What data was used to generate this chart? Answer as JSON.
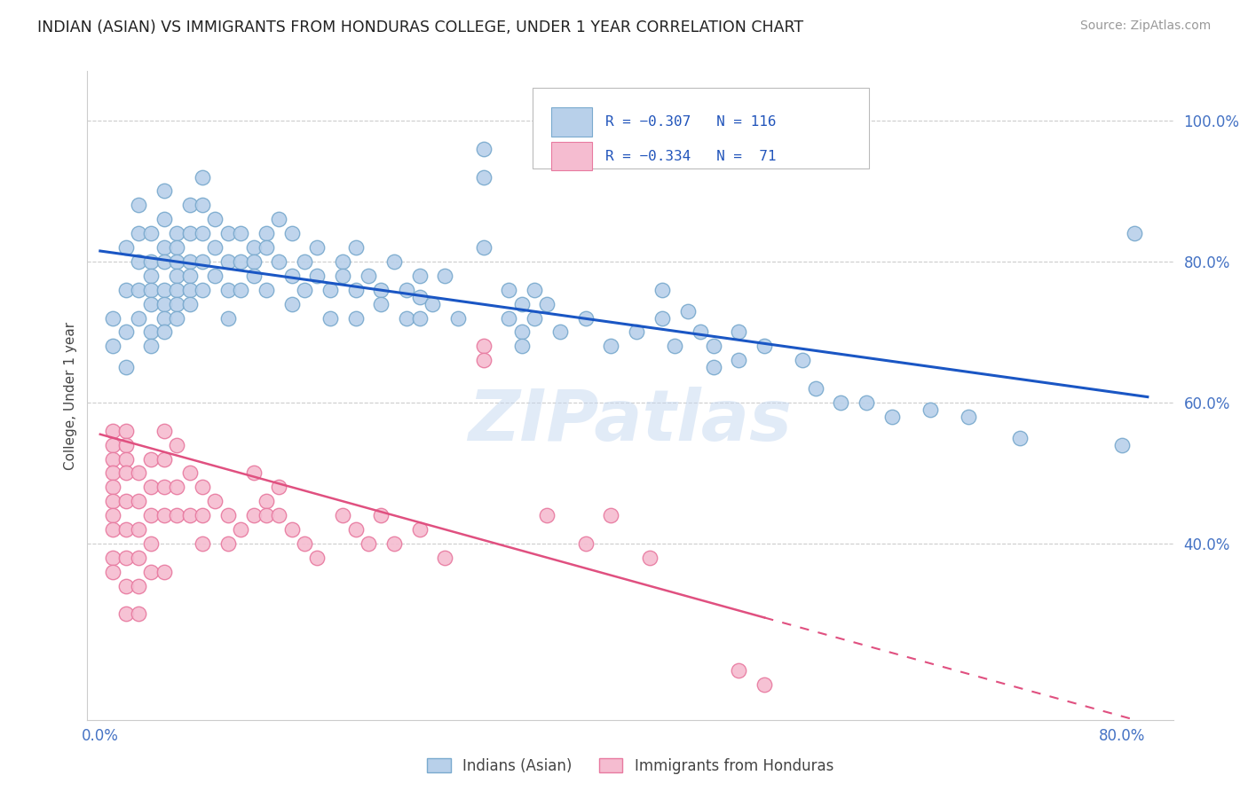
{
  "title": "INDIAN (ASIAN) VS IMMIGRANTS FROM HONDURAS COLLEGE, UNDER 1 YEAR CORRELATION CHART",
  "source": "Source: ZipAtlas.com",
  "ylabel": "College, Under 1 year",
  "legend_series": [
    {
      "label": "Indians (Asian)",
      "color": "#b8d0ea",
      "border": "#7aaace"
    },
    {
      "label": "Immigrants from Honduras",
      "color": "#f5bcd0",
      "border": "#e87aa0"
    }
  ],
  "watermark": "ZIPatlas",
  "background_color": "#ffffff",
  "grid_color": "#cccccc",
  "xlim": [
    -0.01,
    0.84
  ],
  "ylim": [
    0.15,
    1.07
  ],
  "ytick_positions": [
    0.4,
    0.6,
    0.8,
    1.0
  ],
  "ytick_labels": [
    "40.0%",
    "60.0%",
    "80.0%",
    "100.0%"
  ],
  "xtick_positions": [
    0.0,
    0.8
  ],
  "xtick_labels": [
    "0.0%",
    "80.0%"
  ],
  "blue_line": {
    "x0": 0.0,
    "x1": 0.82,
    "y0": 0.815,
    "y1": 0.608
  },
  "pink_line_solid": {
    "x0": 0.0,
    "x1": 0.52,
    "y0": 0.555,
    "y1": 0.295
  },
  "pink_line_dashed": {
    "x0": 0.52,
    "x1": 0.82,
    "y0": 0.295,
    "y1": 0.145
  },
  "blue_scatter": [
    [
      0.01,
      0.72
    ],
    [
      0.01,
      0.68
    ],
    [
      0.02,
      0.82
    ],
    [
      0.02,
      0.76
    ],
    [
      0.02,
      0.7
    ],
    [
      0.02,
      0.65
    ],
    [
      0.03,
      0.88
    ],
    [
      0.03,
      0.84
    ],
    [
      0.03,
      0.8
    ],
    [
      0.03,
      0.76
    ],
    [
      0.03,
      0.72
    ],
    [
      0.04,
      0.84
    ],
    [
      0.04,
      0.8
    ],
    [
      0.04,
      0.78
    ],
    [
      0.04,
      0.76
    ],
    [
      0.04,
      0.74
    ],
    [
      0.04,
      0.7
    ],
    [
      0.04,
      0.68
    ],
    [
      0.05,
      0.9
    ],
    [
      0.05,
      0.86
    ],
    [
      0.05,
      0.82
    ],
    [
      0.05,
      0.8
    ],
    [
      0.05,
      0.76
    ],
    [
      0.05,
      0.74
    ],
    [
      0.05,
      0.72
    ],
    [
      0.05,
      0.7
    ],
    [
      0.06,
      0.84
    ],
    [
      0.06,
      0.82
    ],
    [
      0.06,
      0.8
    ],
    [
      0.06,
      0.78
    ],
    [
      0.06,
      0.76
    ],
    [
      0.06,
      0.74
    ],
    [
      0.06,
      0.72
    ],
    [
      0.07,
      0.88
    ],
    [
      0.07,
      0.84
    ],
    [
      0.07,
      0.8
    ],
    [
      0.07,
      0.78
    ],
    [
      0.07,
      0.76
    ],
    [
      0.07,
      0.74
    ],
    [
      0.08,
      0.92
    ],
    [
      0.08,
      0.88
    ],
    [
      0.08,
      0.84
    ],
    [
      0.08,
      0.8
    ],
    [
      0.08,
      0.76
    ],
    [
      0.09,
      0.86
    ],
    [
      0.09,
      0.82
    ],
    [
      0.09,
      0.78
    ],
    [
      0.1,
      0.84
    ],
    [
      0.1,
      0.8
    ],
    [
      0.1,
      0.76
    ],
    [
      0.1,
      0.72
    ],
    [
      0.11,
      0.84
    ],
    [
      0.11,
      0.8
    ],
    [
      0.11,
      0.76
    ],
    [
      0.12,
      0.82
    ],
    [
      0.12,
      0.8
    ],
    [
      0.12,
      0.78
    ],
    [
      0.13,
      0.84
    ],
    [
      0.13,
      0.82
    ],
    [
      0.13,
      0.76
    ],
    [
      0.14,
      0.86
    ],
    [
      0.14,
      0.8
    ],
    [
      0.15,
      0.84
    ],
    [
      0.15,
      0.78
    ],
    [
      0.15,
      0.74
    ],
    [
      0.16,
      0.8
    ],
    [
      0.16,
      0.76
    ],
    [
      0.17,
      0.82
    ],
    [
      0.17,
      0.78
    ],
    [
      0.18,
      0.76
    ],
    [
      0.18,
      0.72
    ],
    [
      0.19,
      0.8
    ],
    [
      0.19,
      0.78
    ],
    [
      0.2,
      0.82
    ],
    [
      0.2,
      0.76
    ],
    [
      0.2,
      0.72
    ],
    [
      0.21,
      0.78
    ],
    [
      0.22,
      0.76
    ],
    [
      0.22,
      0.74
    ],
    [
      0.23,
      0.8
    ],
    [
      0.24,
      0.76
    ],
    [
      0.24,
      0.72
    ],
    [
      0.25,
      0.78
    ],
    [
      0.25,
      0.75
    ],
    [
      0.25,
      0.72
    ],
    [
      0.26,
      0.74
    ],
    [
      0.27,
      0.78
    ],
    [
      0.28,
      0.72
    ],
    [
      0.3,
      0.96
    ],
    [
      0.3,
      0.92
    ],
    [
      0.3,
      0.82
    ],
    [
      0.32,
      0.76
    ],
    [
      0.32,
      0.72
    ],
    [
      0.33,
      0.74
    ],
    [
      0.33,
      0.7
    ],
    [
      0.33,
      0.68
    ],
    [
      0.34,
      0.76
    ],
    [
      0.34,
      0.72
    ],
    [
      0.35,
      0.74
    ],
    [
      0.36,
      0.7
    ],
    [
      0.38,
      0.72
    ],
    [
      0.4,
      0.68
    ],
    [
      0.42,
      0.7
    ],
    [
      0.44,
      0.76
    ],
    [
      0.44,
      0.72
    ],
    [
      0.45,
      0.68
    ],
    [
      0.46,
      0.73
    ],
    [
      0.47,
      0.7
    ],
    [
      0.48,
      0.68
    ],
    [
      0.48,
      0.65
    ],
    [
      0.5,
      0.7
    ],
    [
      0.5,
      0.66
    ],
    [
      0.52,
      0.68
    ],
    [
      0.55,
      0.66
    ],
    [
      0.56,
      0.62
    ],
    [
      0.58,
      0.6
    ],
    [
      0.6,
      0.6
    ],
    [
      0.62,
      0.58
    ],
    [
      0.65,
      0.59
    ],
    [
      0.68,
      0.58
    ],
    [
      0.72,
      0.55
    ],
    [
      0.8,
      0.54
    ],
    [
      0.81,
      0.84
    ]
  ],
  "pink_scatter": [
    [
      0.01,
      0.56
    ],
    [
      0.01,
      0.54
    ],
    [
      0.01,
      0.52
    ],
    [
      0.01,
      0.5
    ],
    [
      0.01,
      0.48
    ],
    [
      0.01,
      0.46
    ],
    [
      0.01,
      0.44
    ],
    [
      0.01,
      0.42
    ],
    [
      0.01,
      0.38
    ],
    [
      0.01,
      0.36
    ],
    [
      0.02,
      0.56
    ],
    [
      0.02,
      0.54
    ],
    [
      0.02,
      0.52
    ],
    [
      0.02,
      0.5
    ],
    [
      0.02,
      0.46
    ],
    [
      0.02,
      0.42
    ],
    [
      0.02,
      0.38
    ],
    [
      0.02,
      0.34
    ],
    [
      0.02,
      0.3
    ],
    [
      0.03,
      0.5
    ],
    [
      0.03,
      0.46
    ],
    [
      0.03,
      0.42
    ],
    [
      0.03,
      0.38
    ],
    [
      0.03,
      0.34
    ],
    [
      0.03,
      0.3
    ],
    [
      0.04,
      0.52
    ],
    [
      0.04,
      0.48
    ],
    [
      0.04,
      0.44
    ],
    [
      0.04,
      0.4
    ],
    [
      0.04,
      0.36
    ],
    [
      0.05,
      0.56
    ],
    [
      0.05,
      0.52
    ],
    [
      0.05,
      0.48
    ],
    [
      0.05,
      0.44
    ],
    [
      0.05,
      0.36
    ],
    [
      0.06,
      0.54
    ],
    [
      0.06,
      0.48
    ],
    [
      0.06,
      0.44
    ],
    [
      0.07,
      0.5
    ],
    [
      0.07,
      0.44
    ],
    [
      0.08,
      0.48
    ],
    [
      0.08,
      0.44
    ],
    [
      0.08,
      0.4
    ],
    [
      0.09,
      0.46
    ],
    [
      0.1,
      0.44
    ],
    [
      0.1,
      0.4
    ],
    [
      0.11,
      0.42
    ],
    [
      0.12,
      0.5
    ],
    [
      0.12,
      0.44
    ],
    [
      0.13,
      0.46
    ],
    [
      0.13,
      0.44
    ],
    [
      0.14,
      0.48
    ],
    [
      0.14,
      0.44
    ],
    [
      0.15,
      0.42
    ],
    [
      0.16,
      0.4
    ],
    [
      0.17,
      0.38
    ],
    [
      0.19,
      0.44
    ],
    [
      0.2,
      0.42
    ],
    [
      0.21,
      0.4
    ],
    [
      0.22,
      0.44
    ],
    [
      0.23,
      0.4
    ],
    [
      0.25,
      0.42
    ],
    [
      0.27,
      0.38
    ],
    [
      0.3,
      0.68
    ],
    [
      0.3,
      0.66
    ],
    [
      0.35,
      0.44
    ],
    [
      0.38,
      0.4
    ],
    [
      0.4,
      0.44
    ],
    [
      0.43,
      0.38
    ],
    [
      0.5,
      0.22
    ],
    [
      0.52,
      0.2
    ]
  ]
}
